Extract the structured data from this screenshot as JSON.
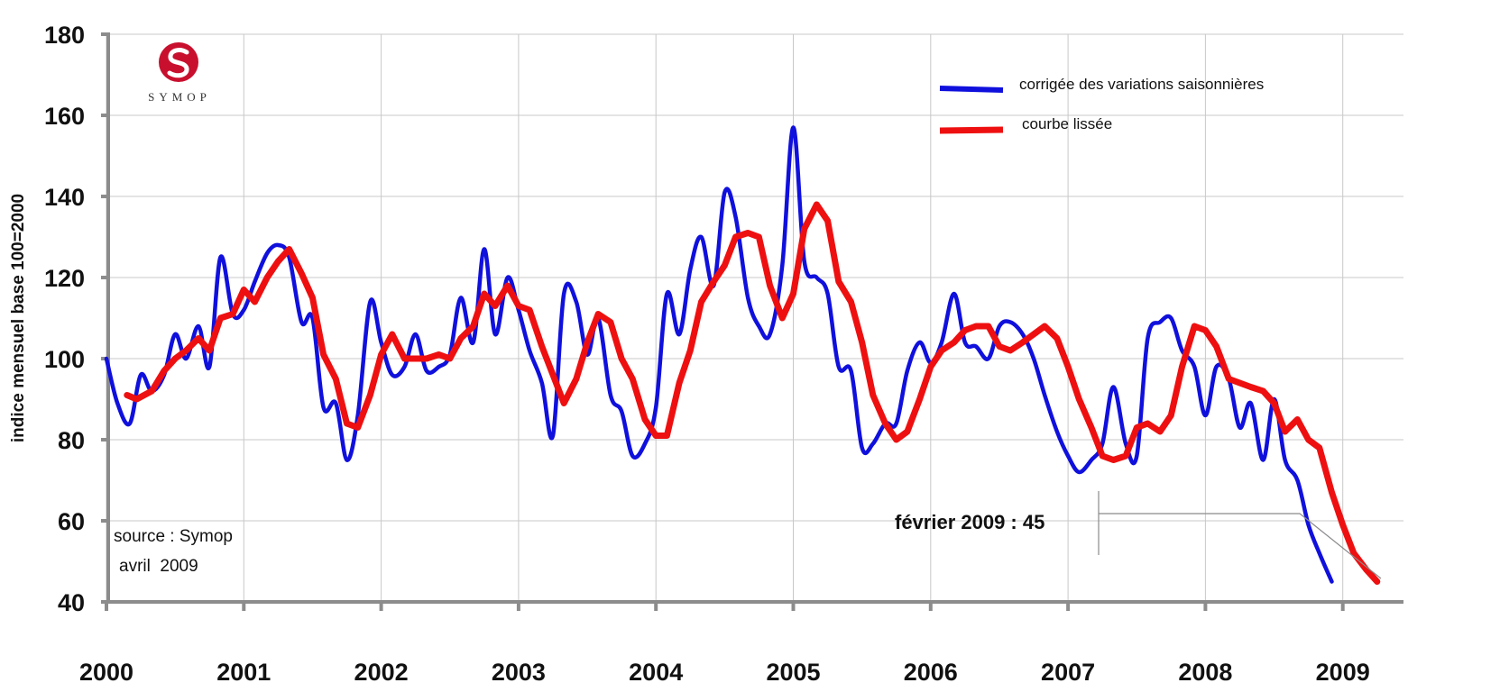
{
  "chart_data": {
    "type": "line",
    "title": "",
    "ylabel": "indice mensuel base 100=2000",
    "xlabel": "",
    "ylim": [
      40,
      180
    ],
    "y_ticks": [
      "40",
      "60",
      "80",
      "100",
      "120",
      "140",
      "160",
      "180"
    ],
    "x_ticks": [
      "2000",
      "2001",
      "2002",
      "2003",
      "2004",
      "2005",
      "2006",
      "2007",
      "2008",
      "2009"
    ],
    "grid": true,
    "legend_position": "top-right",
    "colors": {
      "series_1": "#1010dd",
      "series_2": "#ee1010",
      "grid": "#c8c8c8",
      "axis": "#8c8c8c",
      "logo": "#c8102e"
    },
    "series": [
      {
        "name": "corrigée des variations saisonnières",
        "points": [
          [
            2000.0,
            100
          ],
          [
            2000.08,
            89
          ],
          [
            2000.17,
            84
          ],
          [
            2000.25,
            96
          ],
          [
            2000.33,
            92
          ],
          [
            2000.42,
            96
          ],
          [
            2000.5,
            106
          ],
          [
            2000.58,
            100
          ],
          [
            2000.67,
            108
          ],
          [
            2000.75,
            98
          ],
          [
            2000.83,
            125
          ],
          [
            2000.92,
            111
          ],
          [
            2001.0,
            112
          ],
          [
            2001.08,
            119
          ],
          [
            2001.17,
            126
          ],
          [
            2001.25,
            128
          ],
          [
            2001.33,
            125
          ],
          [
            2001.42,
            109
          ],
          [
            2001.5,
            110
          ],
          [
            2001.58,
            88
          ],
          [
            2001.67,
            89
          ],
          [
            2001.75,
            75
          ],
          [
            2001.83,
            86
          ],
          [
            2001.92,
            114
          ],
          [
            2002.0,
            104
          ],
          [
            2002.08,
            96
          ],
          [
            2002.17,
            98
          ],
          [
            2002.25,
            106
          ],
          [
            2002.33,
            97
          ],
          [
            2002.42,
            98
          ],
          [
            2002.5,
            101
          ],
          [
            2002.58,
            115
          ],
          [
            2002.67,
            104
          ],
          [
            2002.75,
            127
          ],
          [
            2002.83,
            106
          ],
          [
            2002.92,
            120
          ],
          [
            2003.0,
            112
          ],
          [
            2003.08,
            102
          ],
          [
            2003.17,
            94
          ],
          [
            2003.25,
            81
          ],
          [
            2003.33,
            116
          ],
          [
            2003.42,
            114
          ],
          [
            2003.5,
            101
          ],
          [
            2003.58,
            110
          ],
          [
            2003.67,
            91
          ],
          [
            2003.75,
            87
          ],
          [
            2003.83,
            76
          ],
          [
            2003.92,
            79
          ],
          [
            2004.0,
            88
          ],
          [
            2004.08,
            116
          ],
          [
            2004.17,
            106
          ],
          [
            2004.25,
            122
          ],
          [
            2004.33,
            130
          ],
          [
            2004.42,
            118
          ],
          [
            2004.5,
            141
          ],
          [
            2004.58,
            135
          ],
          [
            2004.67,
            115
          ],
          [
            2004.75,
            108
          ],
          [
            2004.83,
            106
          ],
          [
            2004.92,
            123
          ],
          [
            2005.0,
            157
          ],
          [
            2005.08,
            124
          ],
          [
            2005.17,
            120
          ],
          [
            2005.25,
            116
          ],
          [
            2005.33,
            98
          ],
          [
            2005.42,
            97
          ],
          [
            2005.5,
            78
          ],
          [
            2005.58,
            79
          ],
          [
            2005.67,
            84
          ],
          [
            2005.75,
            84
          ],
          [
            2005.83,
            97
          ],
          [
            2005.92,
            104
          ],
          [
            2006.0,
            99
          ],
          [
            2006.08,
            104
          ],
          [
            2006.17,
            116
          ],
          [
            2006.25,
            104
          ],
          [
            2006.33,
            103
          ],
          [
            2006.42,
            100
          ],
          [
            2006.5,
            108
          ],
          [
            2006.58,
            109
          ],
          [
            2006.67,
            106
          ],
          [
            2006.75,
            100
          ],
          [
            2006.83,
            91
          ],
          [
            2006.92,
            82
          ],
          [
            2007.0,
            76
          ],
          [
            2007.08,
            72
          ],
          [
            2007.17,
            75
          ],
          [
            2007.25,
            79
          ],
          [
            2007.33,
            93
          ],
          [
            2007.42,
            79
          ],
          [
            2007.5,
            76
          ],
          [
            2007.58,
            105
          ],
          [
            2007.67,
            109
          ],
          [
            2007.75,
            110
          ],
          [
            2007.83,
            102
          ],
          [
            2007.92,
            98
          ],
          [
            2008.0,
            86
          ],
          [
            2008.08,
            98
          ],
          [
            2008.17,
            95
          ],
          [
            2008.25,
            83
          ],
          [
            2008.33,
            89
          ],
          [
            2008.42,
            75
          ],
          [
            2008.5,
            90
          ],
          [
            2008.58,
            75
          ],
          [
            2008.67,
            70
          ],
          [
            2008.75,
            59
          ],
          [
            2008.83,
            52
          ],
          [
            2008.92,
            45
          ]
        ]
      },
      {
        "name": "courbe lissée",
        "points": [
          [
            2000.15,
            91
          ],
          [
            2000.22,
            90
          ],
          [
            2000.33,
            92
          ],
          [
            2000.42,
            97
          ],
          [
            2000.5,
            100
          ],
          [
            2000.58,
            102
          ],
          [
            2000.67,
            105
          ],
          [
            2000.75,
            102
          ],
          [
            2000.83,
            110
          ],
          [
            2000.92,
            111
          ],
          [
            2001.0,
            117
          ],
          [
            2001.08,
            114
          ],
          [
            2001.17,
            120
          ],
          [
            2001.25,
            124
          ],
          [
            2001.33,
            127
          ],
          [
            2001.42,
            121
          ],
          [
            2001.5,
            115
          ],
          [
            2001.58,
            101
          ],
          [
            2001.67,
            95
          ],
          [
            2001.75,
            84
          ],
          [
            2001.83,
            83
          ],
          [
            2001.92,
            91
          ],
          [
            2002.0,
            101
          ],
          [
            2002.08,
            106
          ],
          [
            2002.17,
            100
          ],
          [
            2002.25,
            100
          ],
          [
            2002.33,
            100
          ],
          [
            2002.42,
            101
          ],
          [
            2002.5,
            100
          ],
          [
            2002.58,
            105
          ],
          [
            2002.67,
            108
          ],
          [
            2002.75,
            116
          ],
          [
            2002.83,
            113
          ],
          [
            2002.92,
            118
          ],
          [
            2003.0,
            113
          ],
          [
            2003.08,
            112
          ],
          [
            2003.17,
            103
          ],
          [
            2003.25,
            96
          ],
          [
            2003.33,
            89
          ],
          [
            2003.42,
            95
          ],
          [
            2003.5,
            104
          ],
          [
            2003.58,
            111
          ],
          [
            2003.67,
            109
          ],
          [
            2003.75,
            100
          ],
          [
            2003.83,
            95
          ],
          [
            2003.92,
            85
          ],
          [
            2004.0,
            81
          ],
          [
            2004.08,
            81
          ],
          [
            2004.17,
            94
          ],
          [
            2004.25,
            102
          ],
          [
            2004.33,
            114
          ],
          [
            2004.42,
            119
          ],
          [
            2004.5,
            123
          ],
          [
            2004.58,
            130
          ],
          [
            2004.67,
            131
          ],
          [
            2004.75,
            130
          ],
          [
            2004.83,
            118
          ],
          [
            2004.92,
            110
          ],
          [
            2005.0,
            116
          ],
          [
            2005.08,
            132
          ],
          [
            2005.17,
            138
          ],
          [
            2005.25,
            134
          ],
          [
            2005.33,
            119
          ],
          [
            2005.42,
            114
          ],
          [
            2005.5,
            104
          ],
          [
            2005.58,
            91
          ],
          [
            2005.67,
            84
          ],
          [
            2005.75,
            80
          ],
          [
            2005.83,
            82
          ],
          [
            2005.92,
            90
          ],
          [
            2006.0,
            98
          ],
          [
            2006.08,
            102
          ],
          [
            2006.17,
            104
          ],
          [
            2006.25,
            107
          ],
          [
            2006.33,
            108
          ],
          [
            2006.42,
            108
          ],
          [
            2006.5,
            103
          ],
          [
            2006.58,
            102
          ],
          [
            2006.67,
            104
          ],
          [
            2006.75,
            106
          ],
          [
            2006.83,
            108
          ],
          [
            2006.92,
            105
          ],
          [
            2007.0,
            98
          ],
          [
            2007.08,
            90
          ],
          [
            2007.17,
            83
          ],
          [
            2007.25,
            76
          ],
          [
            2007.33,
            75
          ],
          [
            2007.42,
            76
          ],
          [
            2007.5,
            83
          ],
          [
            2007.58,
            84
          ],
          [
            2007.67,
            82
          ],
          [
            2007.75,
            86
          ],
          [
            2007.83,
            98
          ],
          [
            2007.92,
            108
          ],
          [
            2008.0,
            107
          ],
          [
            2008.08,
            103
          ],
          [
            2008.17,
            95
          ],
          [
            2008.25,
            94
          ],
          [
            2008.33,
            93
          ],
          [
            2008.42,
            92
          ],
          [
            2008.5,
            89
          ],
          [
            2008.58,
            82
          ],
          [
            2008.67,
            85
          ],
          [
            2008.75,
            80
          ],
          [
            2008.83,
            78
          ],
          [
            2008.92,
            67
          ],
          [
            2009.0,
            59
          ],
          [
            2009.08,
            52
          ],
          [
            2009.17,
            48
          ],
          [
            2009.25,
            45
          ]
        ]
      }
    ],
    "annotations": {
      "callout": "février 2009 : 45",
      "source_line1": "source : Symop",
      "source_line2": "avril  2009"
    }
  },
  "logo": {
    "text": "SYMOP",
    "icon": "symop-s-logo"
  }
}
